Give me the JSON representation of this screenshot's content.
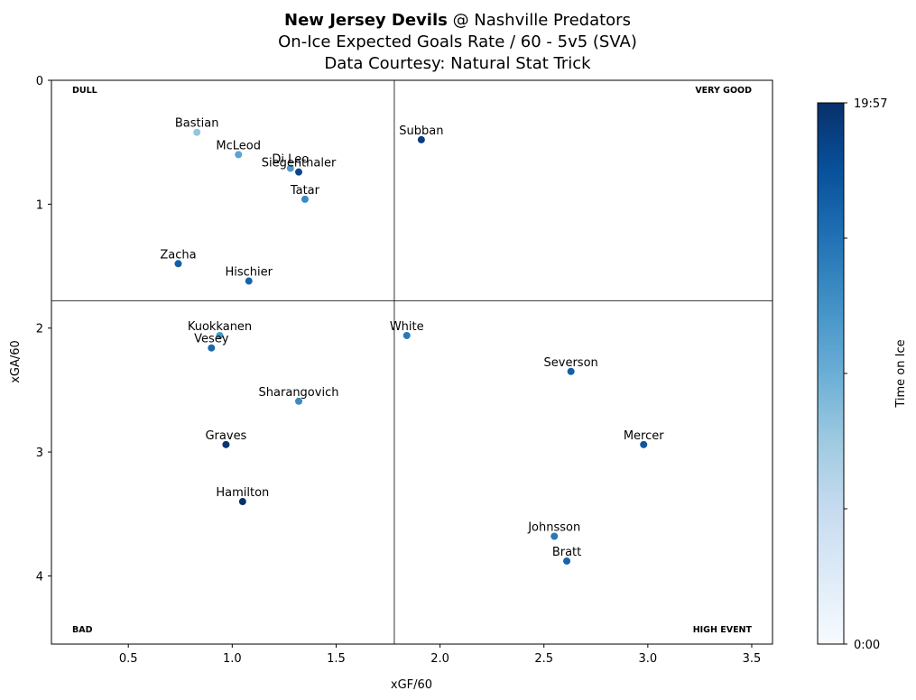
{
  "chart_data": {
    "type": "scatter",
    "title": {
      "team_bold": "New Jersey Devils",
      "opponent": " @ Nashville Predators",
      "line2": "On-Ice Expected Goals Rate / 60 - 5v5 (SVA)",
      "line3": "Data Courtesy: Natural Stat Trick"
    },
    "xlabel": "xGF/60",
    "ylabel": "xGA/60",
    "xlim": [
      0.13,
      3.6
    ],
    "ylim": [
      4.55,
      0
    ],
    "y_inverted": true,
    "x_ticks": [
      "0.5",
      "1.0",
      "1.5",
      "2.0",
      "2.5",
      "3.0",
      "3.5"
    ],
    "y_ticks": [
      "0",
      "1",
      "2",
      "3",
      "4"
    ],
    "reference_lines": {
      "x": 1.78,
      "y": 1.78
    },
    "quadrant_labels": {
      "top_left": "DULL",
      "top_right": "VERY GOOD",
      "bottom_left": "BAD",
      "bottom_right": "HIGH EVENT"
    },
    "colorbar": {
      "label": "Time on Ice",
      "min_label": "0:00",
      "max_label": "19:57",
      "colormap": "Blues",
      "colors": [
        "#f7fbff",
        "#deebf7",
        "#c6dbef",
        "#9ecae1",
        "#6baed6",
        "#4292c6",
        "#2171b5",
        "#08519c",
        "#08306b"
      ]
    },
    "points": [
      {
        "name": "Bastian",
        "x": 0.83,
        "y": 0.42,
        "toi": 0.4
      },
      {
        "name": "McLeod",
        "x": 1.03,
        "y": 0.6,
        "toi": 0.55
      },
      {
        "name": "Di Leo",
        "x": 1.28,
        "y": 0.71,
        "toi": 0.58
      },
      {
        "name": "Siegenthaler",
        "x": 1.32,
        "y": 0.74,
        "toi": 0.92
      },
      {
        "name": "Tatar",
        "x": 1.35,
        "y": 0.96,
        "toi": 0.65
      },
      {
        "name": "Zacha",
        "x": 0.74,
        "y": 1.48,
        "toi": 0.82
      },
      {
        "name": "Hischier",
        "x": 1.08,
        "y": 1.62,
        "toi": 0.8
      },
      {
        "name": "Subban",
        "x": 1.91,
        "y": 0.48,
        "toi": 0.95
      },
      {
        "name": "Kuokkanen",
        "x": 0.94,
        "y": 2.06,
        "toi": 0.6
      },
      {
        "name": "Vesey",
        "x": 0.9,
        "y": 2.16,
        "toi": 0.78
      },
      {
        "name": "White",
        "x": 1.84,
        "y": 2.06,
        "toi": 0.72
      },
      {
        "name": "Severson",
        "x": 2.63,
        "y": 2.35,
        "toi": 0.82
      },
      {
        "name": "Sharangovich",
        "x": 1.32,
        "y": 2.59,
        "toi": 0.65
      },
      {
        "name": "Graves",
        "x": 0.97,
        "y": 2.94,
        "toi": 0.98
      },
      {
        "name": "Mercer",
        "x": 2.98,
        "y": 2.94,
        "toi": 0.85
      },
      {
        "name": "Hamilton",
        "x": 1.05,
        "y": 3.4,
        "toi": 1.0
      },
      {
        "name": "Johnsson",
        "x": 2.55,
        "y": 3.68,
        "toi": 0.72
      },
      {
        "name": "Bratt",
        "x": 2.61,
        "y": 3.88,
        "toi": 0.8
      }
    ]
  }
}
